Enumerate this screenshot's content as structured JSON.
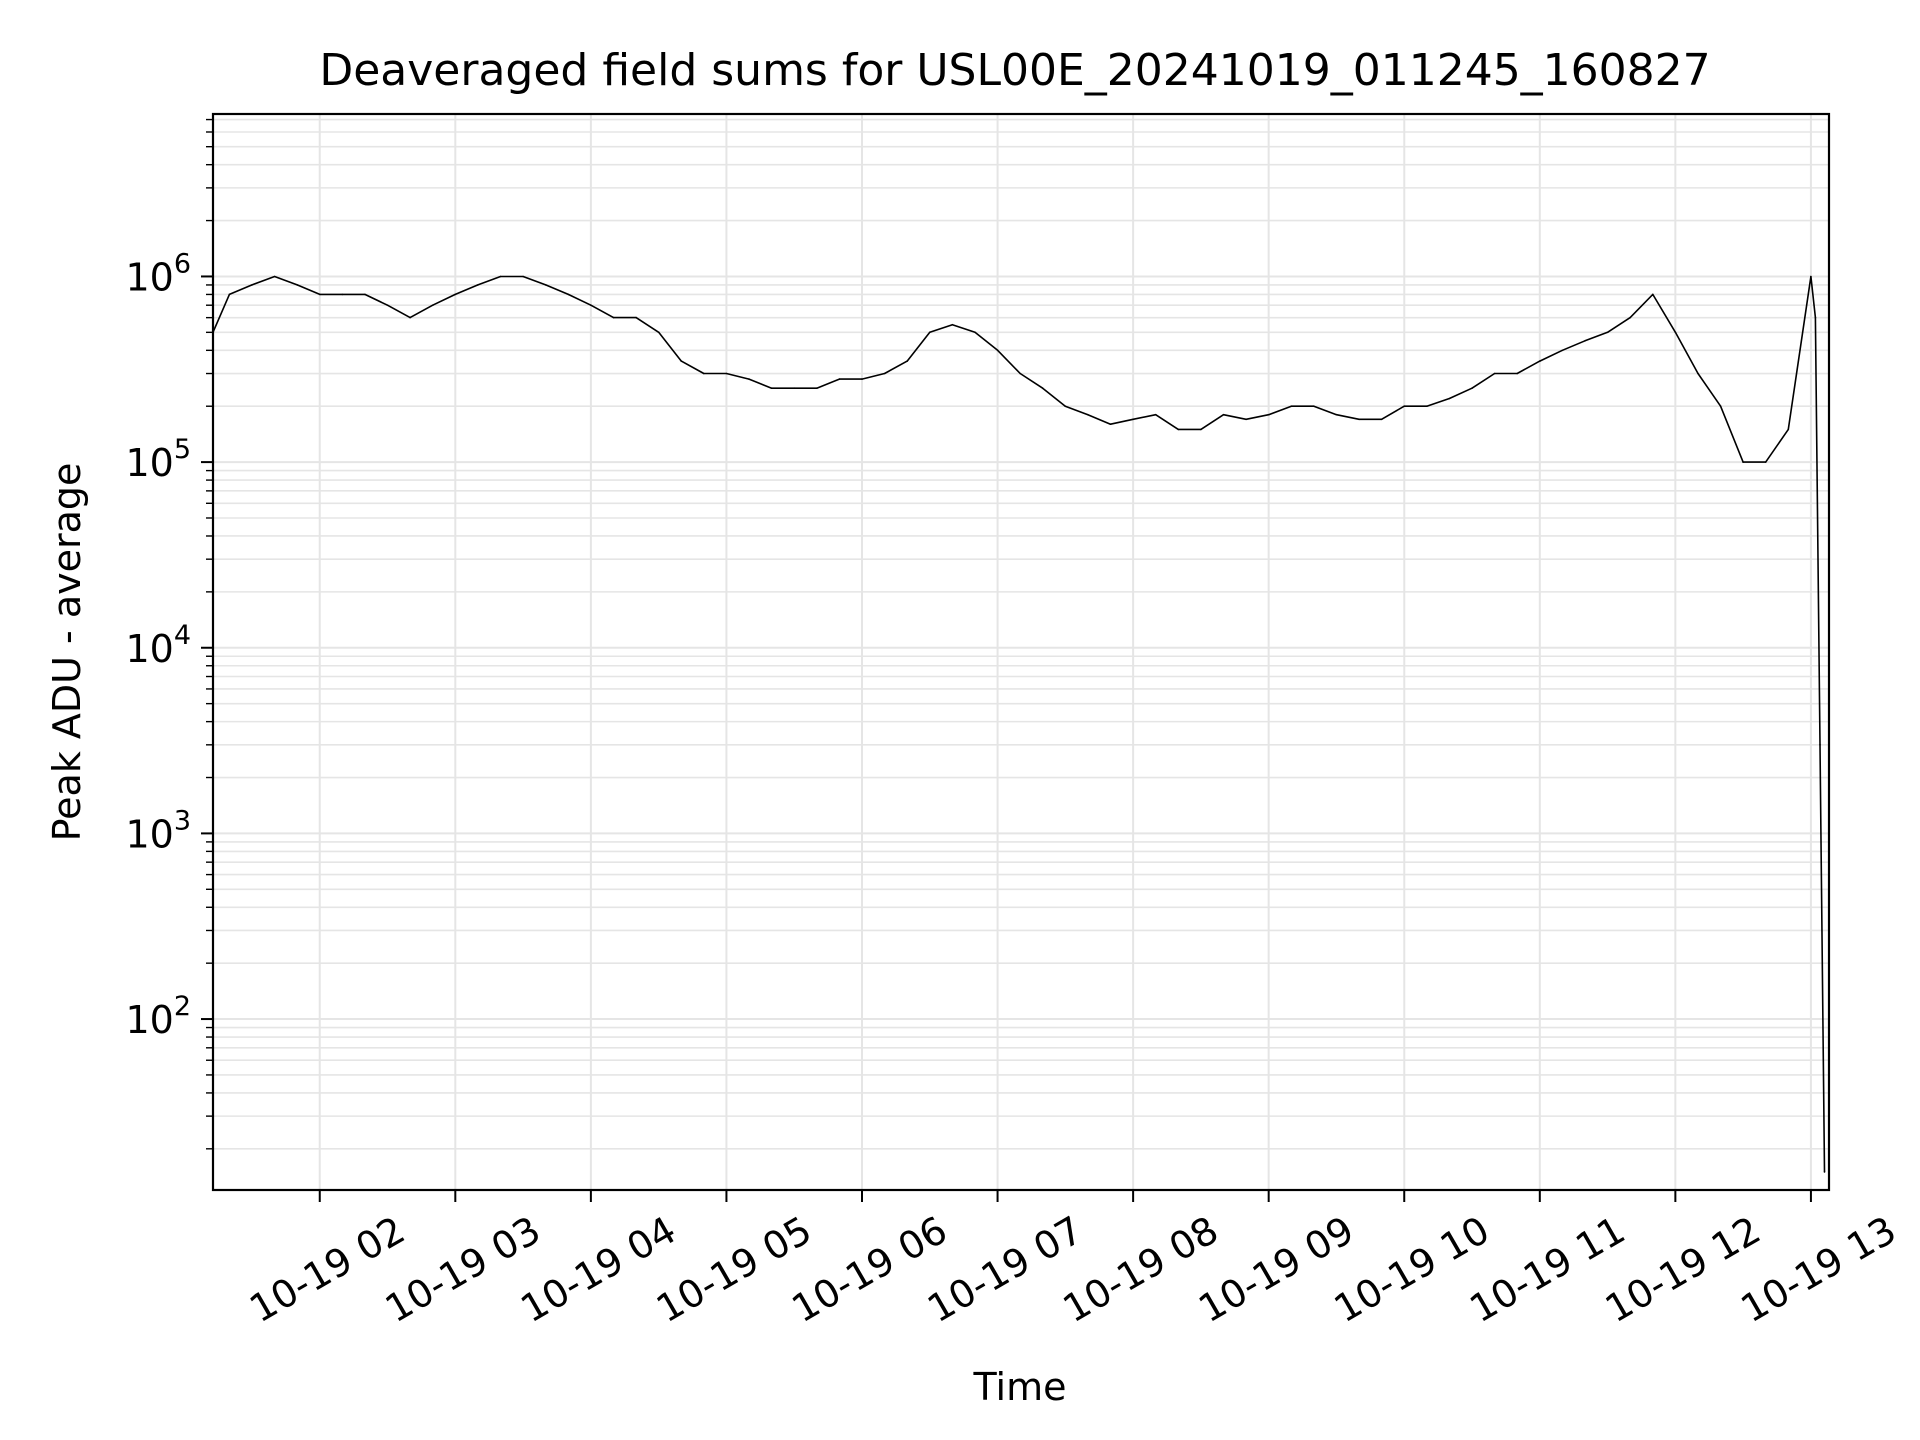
{
  "chart_data": {
    "type": "line",
    "title": "Deaveraged field sums for USL00E_20241019_011245_160827",
    "xlabel": "Time",
    "ylabel": "Peak ADU - average",
    "yscale": "log",
    "ylim": [
      12,
      7500000
    ],
    "xlim": [
      "2024-10-19T01:12:45",
      "2024-10-19T13:08:00"
    ],
    "grid": true,
    "line_color": "#000000",
    "grid_color": "#e5e5e5",
    "x_ticks": [
      {
        "t": "2024-10-19T02:00",
        "label": "10-19 02"
      },
      {
        "t": "2024-10-19T03:00",
        "label": "10-19 03"
      },
      {
        "t": "2024-10-19T04:00",
        "label": "10-19 04"
      },
      {
        "t": "2024-10-19T05:00",
        "label": "10-19 05"
      },
      {
        "t": "2024-10-19T06:00",
        "label": "10-19 06"
      },
      {
        "t": "2024-10-19T07:00",
        "label": "10-19 07"
      },
      {
        "t": "2024-10-19T08:00",
        "label": "10-19 08"
      },
      {
        "t": "2024-10-19T09:00",
        "label": "10-19 09"
      },
      {
        "t": "2024-10-19T10:00",
        "label": "10-19 10"
      },
      {
        "t": "2024-10-19T11:00",
        "label": "10-19 11"
      },
      {
        "t": "2024-10-19T12:00",
        "label": "10-19 12"
      },
      {
        "t": "2024-10-19T13:00",
        "label": "10-19 13"
      }
    ],
    "y_ticks": [
      {
        "value": 100,
        "base": "10",
        "exp": "2"
      },
      {
        "value": 1000,
        "base": "10",
        "exp": "3"
      },
      {
        "value": 10000,
        "base": "10",
        "exp": "4"
      },
      {
        "value": 100000,
        "base": "10",
        "exp": "5"
      },
      {
        "value": 1000000,
        "base": "10",
        "exp": "6"
      }
    ],
    "series": [
      {
        "x": [
          "2024-10-19T01:12:45",
          "2024-10-19T01:20",
          "2024-10-19T01:30",
          "2024-10-19T01:40",
          "2024-10-19T01:50",
          "2024-10-19T02:00",
          "2024-10-19T02:10",
          "2024-10-19T02:20",
          "2024-10-19T02:30",
          "2024-10-19T02:40",
          "2024-10-19T02:50",
          "2024-10-19T03:00",
          "2024-10-19T03:10",
          "2024-10-19T03:20",
          "2024-10-19T03:30",
          "2024-10-19T03:40",
          "2024-10-19T03:50",
          "2024-10-19T04:00",
          "2024-10-19T04:10",
          "2024-10-19T04:20",
          "2024-10-19T04:30",
          "2024-10-19T04:40",
          "2024-10-19T04:50",
          "2024-10-19T05:00",
          "2024-10-19T05:10",
          "2024-10-19T05:20",
          "2024-10-19T05:30",
          "2024-10-19T05:40",
          "2024-10-19T05:50",
          "2024-10-19T06:00",
          "2024-10-19T06:10",
          "2024-10-19T06:20",
          "2024-10-19T06:30",
          "2024-10-19T06:40",
          "2024-10-19T06:50",
          "2024-10-19T07:00",
          "2024-10-19T07:10",
          "2024-10-19T07:20",
          "2024-10-19T07:30",
          "2024-10-19T07:40",
          "2024-10-19T07:50",
          "2024-10-19T08:00",
          "2024-10-19T08:10",
          "2024-10-19T08:20",
          "2024-10-19T08:30",
          "2024-10-19T08:40",
          "2024-10-19T08:50",
          "2024-10-19T09:00",
          "2024-10-19T09:10",
          "2024-10-19T09:20",
          "2024-10-19T09:30",
          "2024-10-19T09:40",
          "2024-10-19T09:50",
          "2024-10-19T10:00",
          "2024-10-19T10:10",
          "2024-10-19T10:20",
          "2024-10-19T10:30",
          "2024-10-19T10:40",
          "2024-10-19T10:50",
          "2024-10-19T11:00",
          "2024-10-19T11:10",
          "2024-10-19T11:20",
          "2024-10-19T11:30",
          "2024-10-19T11:40",
          "2024-10-19T11:50",
          "2024-10-19T12:00",
          "2024-10-19T12:10",
          "2024-10-19T12:20",
          "2024-10-19T12:30",
          "2024-10-19T12:40",
          "2024-10-19T12:50",
          "2024-10-19T13:00",
          "2024-10-19T13:02",
          "2024-10-19T13:04",
          "2024-10-19T13:06"
        ],
        "values": [
          500000,
          800000,
          900000,
          1000000,
          900000,
          800000,
          800000,
          800000,
          700000,
          600000,
          700000,
          800000,
          900000,
          1000000,
          1000000,
          900000,
          800000,
          700000,
          600000,
          600000,
          500000,
          350000,
          300000,
          300000,
          280000,
          250000,
          250000,
          250000,
          280000,
          280000,
          300000,
          350000,
          500000,
          550000,
          500000,
          400000,
          300000,
          250000,
          200000,
          180000,
          160000,
          170000,
          180000,
          150000,
          150000,
          180000,
          170000,
          180000,
          200000,
          200000,
          180000,
          170000,
          170000,
          200000,
          200000,
          220000,
          250000,
          300000,
          300000,
          350000,
          400000,
          450000,
          500000,
          600000,
          800000,
          500000,
          300000,
          200000,
          100000,
          100000,
          150000,
          1000000,
          600000,
          3000,
          15
        ]
      }
    ]
  }
}
